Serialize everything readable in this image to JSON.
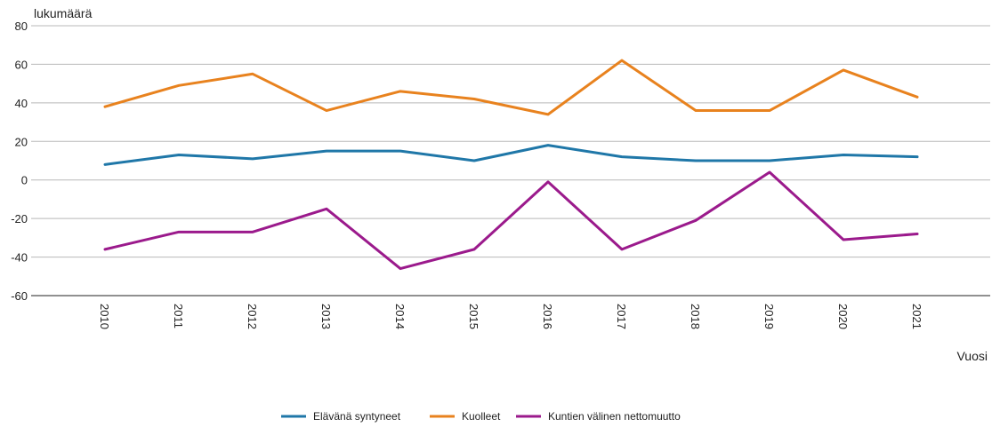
{
  "chart_data": {
    "type": "line",
    "ylabel": "lukumäärä",
    "xlabel": "Vuosi",
    "ylim": [
      -60,
      80
    ],
    "yticks": [
      -60,
      -40,
      -20,
      0,
      20,
      40,
      60,
      80
    ],
    "grid": true,
    "legend_position": "bottom",
    "categories": [
      "2010",
      "2011",
      "2012",
      "2013",
      "2014",
      "2015",
      "2016",
      "2017",
      "2018",
      "2019",
      "2020",
      "2021"
    ],
    "series": [
      {
        "name": "Elävänä syntyneet",
        "color": "#1f77a8",
        "values": [
          8,
          13,
          11,
          15,
          15,
          10,
          18,
          12,
          10,
          10,
          13,
          12
        ]
      },
      {
        "name": "Kuolleet",
        "color": "#e8821e",
        "values": [
          38,
          49,
          55,
          36,
          46,
          42,
          34,
          62,
          36,
          36,
          57,
          43
        ]
      },
      {
        "name": "Kuntien välinen nettomuutto",
        "color": "#9b1a8c",
        "values": [
          -36,
          -27,
          -27,
          -15,
          -46,
          -36,
          -1,
          -36,
          -21,
          4,
          -31,
          -28
        ]
      }
    ]
  }
}
